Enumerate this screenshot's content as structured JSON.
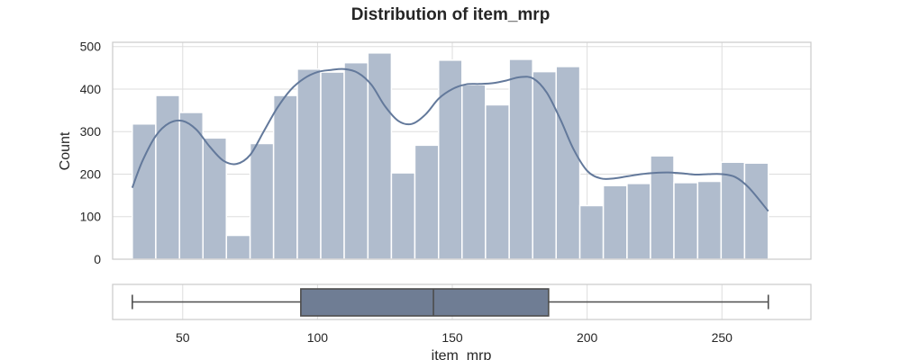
{
  "chart_data": {
    "type": "histogram",
    "title": "Distribution of item_mrp",
    "xlabel": "item_mrp",
    "ylabel": "Count",
    "xlim": [
      24,
      283
    ],
    "ylim": [
      0,
      510
    ],
    "x_ticks": [
      50,
      100,
      150,
      200,
      250
    ],
    "y_ticks": [
      0,
      100,
      200,
      300,
      400,
      500
    ],
    "grid": true,
    "bins": [
      {
        "x0": 31.3,
        "x1": 40.0,
        "count": 318
      },
      {
        "x0": 40.0,
        "x1": 48.8,
        "count": 385
      },
      {
        "x0": 48.8,
        "x1": 57.5,
        "count": 345
      },
      {
        "x0": 57.5,
        "x1": 66.2,
        "count": 285
      },
      {
        "x0": 66.2,
        "x1": 75.0,
        "count": 56
      },
      {
        "x0": 75.0,
        "x1": 83.7,
        "count": 272
      },
      {
        "x0": 83.7,
        "x1": 92.5,
        "count": 385
      },
      {
        "x0": 92.5,
        "x1": 101.2,
        "count": 447
      },
      {
        "x0": 101.2,
        "x1": 109.9,
        "count": 440
      },
      {
        "x0": 109.9,
        "x1": 118.7,
        "count": 462
      },
      {
        "x0": 118.7,
        "x1": 127.4,
        "count": 485
      },
      {
        "x0": 127.4,
        "x1": 136.1,
        "count": 203
      },
      {
        "x0": 136.1,
        "x1": 144.9,
        "count": 268
      },
      {
        "x0": 144.9,
        "x1": 153.6,
        "count": 468
      },
      {
        "x0": 153.6,
        "x1": 162.3,
        "count": 410
      },
      {
        "x0": 162.3,
        "x1": 171.1,
        "count": 363
      },
      {
        "x0": 171.1,
        "x1": 179.8,
        "count": 470
      },
      {
        "x0": 179.8,
        "x1": 188.5,
        "count": 441
      },
      {
        "x0": 188.5,
        "x1": 197.3,
        "count": 453
      },
      {
        "x0": 197.3,
        "x1": 206.0,
        "count": 126
      },
      {
        "x0": 206.0,
        "x1": 214.8,
        "count": 173
      },
      {
        "x0": 214.8,
        "x1": 223.5,
        "count": 178
      },
      {
        "x0": 223.5,
        "x1": 232.2,
        "count": 243
      },
      {
        "x0": 232.2,
        "x1": 241.0,
        "count": 180
      },
      {
        "x0": 241.0,
        "x1": 249.7,
        "count": 183
      },
      {
        "x0": 249.7,
        "x1": 258.4,
        "count": 228
      },
      {
        "x0": 258.4,
        "x1": 267.2,
        "count": 226
      }
    ],
    "kde": {
      "x": [
        31.3,
        35,
        40,
        45,
        50,
        55,
        60,
        65,
        70,
        75,
        80,
        85,
        90,
        95,
        100,
        105,
        110,
        115,
        120,
        125,
        130,
        135,
        140,
        145,
        150,
        155,
        160,
        165,
        170,
        175,
        180,
        185,
        190,
        195,
        200,
        205,
        210,
        215,
        220,
        225,
        230,
        235,
        240,
        245,
        250,
        255,
        260,
        267.2
      ],
      "y": [
        168,
        230,
        290,
        320,
        325,
        305,
        265,
        232,
        224,
        245,
        300,
        355,
        398,
        425,
        440,
        445,
        447,
        438,
        410,
        360,
        325,
        318,
        340,
        378,
        400,
        411,
        412,
        414,
        420,
        428,
        425,
        392,
        330,
        258,
        208,
        190,
        190,
        195,
        200,
        203,
        204,
        202,
        199,
        200,
        200,
        193,
        168,
        113
      ]
    },
    "kde_color": "#63799b",
    "bar_color": "#b0bccd",
    "boxplot": {
      "min": 31.3,
      "q1": 93.8,
      "median": 143.0,
      "q3": 185.7,
      "max": 267.2,
      "box_color": "#6f7d94"
    }
  }
}
